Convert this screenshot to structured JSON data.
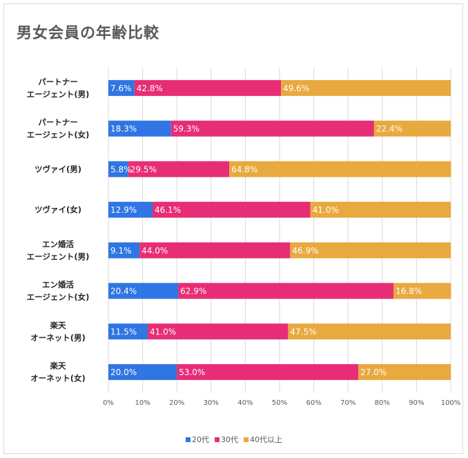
{
  "chart_data": {
    "type": "bar",
    "orientation": "horizontal",
    "stacked": "percent",
    "title": "男女会員の年齢比較",
    "categories": [
      [
        "パートナー",
        "エージェント(男)"
      ],
      [
        "パートナー",
        "エージェント(女)"
      ],
      [
        "ツヴァイ(男)"
      ],
      [
        "ツヴァイ(女)"
      ],
      [
        "エン婚活",
        "エージェント(男)"
      ],
      [
        "エン婚活",
        "エージェント(女)"
      ],
      [
        "楽天",
        "オーネット(男)"
      ],
      [
        "楽天",
        "オーネット(女)"
      ]
    ],
    "series": [
      {
        "name": "20代",
        "color": "#2f75e3",
        "values": [
          7.6,
          18.3,
          5.8,
          12.9,
          9.1,
          20.4,
          11.5,
          20.0
        ],
        "labels": [
          "7.6%",
          "18.3%",
          "5.8%",
          "12.9%",
          "9.1%",
          "20.4%",
          "11.5%",
          "20.0%"
        ]
      },
      {
        "name": "30代",
        "color": "#e72d76",
        "values": [
          42.8,
          59.3,
          29.5,
          46.1,
          44.0,
          62.9,
          41.0,
          53.0
        ],
        "labels": [
          "42.8%",
          "59.3%",
          "29.5%",
          "46.1%",
          "44.0%",
          "62.9%",
          "41.0%",
          "53.0%"
        ]
      },
      {
        "name": "40代以上",
        "color": "#e8a93e",
        "values": [
          49.6,
          22.4,
          64.8,
          41.0,
          46.9,
          16.8,
          47.5,
          27.0
        ],
        "labels": [
          "49.6%",
          "22.4%",
          "64.8%",
          "41.0%",
          "46.9%",
          "16.8%",
          "47.5%",
          "27.0%"
        ]
      }
    ],
    "x_ticks": [
      "0%",
      "10%",
      "20%",
      "30%",
      "40%",
      "50%",
      "60%",
      "70%",
      "80%",
      "90%",
      "100%"
    ],
    "xlim": [
      0,
      100
    ],
    "grid": true,
    "gridline_color": "#d9d9d9",
    "legend_position": "bottom"
  }
}
